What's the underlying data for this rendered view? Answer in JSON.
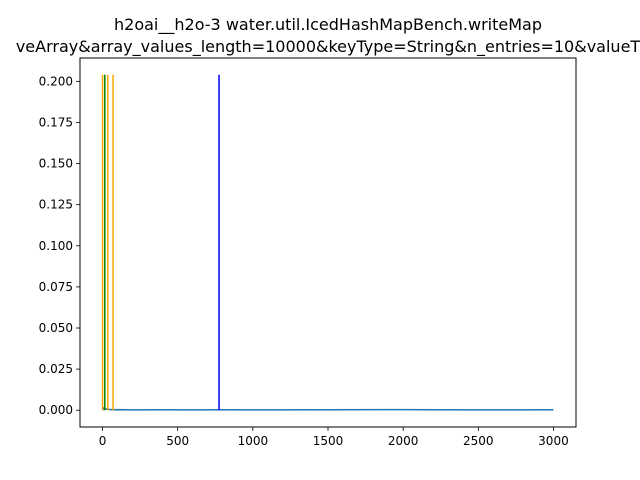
{
  "chart_data": {
    "type": "line",
    "title_line1": "h2oai__h2o-3 water.util.IcedHashMapBench.writeMap",
    "title_line2": "veArray&array_values_length=10000&keyType=String&n_entries=10&valueT",
    "xlim": [
      -150,
      3150
    ],
    "ylim": [
      -0.0102,
      0.2142
    ],
    "x_ticks": [
      0,
      500,
      1000,
      1500,
      2000,
      2500,
      3000
    ],
    "x_tick_labels": [
      "0",
      "500",
      "1000",
      "1500",
      "2000",
      "2500",
      "3000"
    ],
    "y_ticks": [
      0.0,
      0.025,
      0.05,
      0.075,
      0.1,
      0.125,
      0.15,
      0.175,
      0.2
    ],
    "y_tick_labels": [
      "0.000",
      "0.025",
      "0.050",
      "0.075",
      "0.100",
      "0.125",
      "0.150",
      "0.175",
      "0.200"
    ],
    "series": [
      {
        "color": "#1f77b4",
        "x": [
          0,
          10,
          20,
          40,
          60,
          100,
          200,
          400,
          600,
          800,
          1000,
          1500,
          2000,
          2500,
          3000
        ],
        "y": [
          0.0,
          0.0015,
          0.0008,
          0.0005,
          0.0003,
          0.0004,
          0.0002,
          0.0003,
          0.0002,
          0.0003,
          0.0002,
          0.0003,
          0.0004,
          0.0002,
          0.0003
        ]
      }
    ],
    "vertical_lines": [
      {
        "x": 0,
        "y0": 0.0,
        "y1": 0.204,
        "color": "#ffa500"
      },
      {
        "x": 15,
        "y0": 0.0,
        "y1": 0.204,
        "color": "#008000"
      },
      {
        "x": 35,
        "y0": 0.0,
        "y1": 0.204,
        "color": "#ffa500"
      },
      {
        "x": 70,
        "y0": 0.0,
        "y1": 0.204,
        "color": "#ffa500"
      },
      {
        "x": 775,
        "y0": 0.0,
        "y1": 0.204,
        "color": "#0000ff"
      }
    ],
    "grid": false
  }
}
